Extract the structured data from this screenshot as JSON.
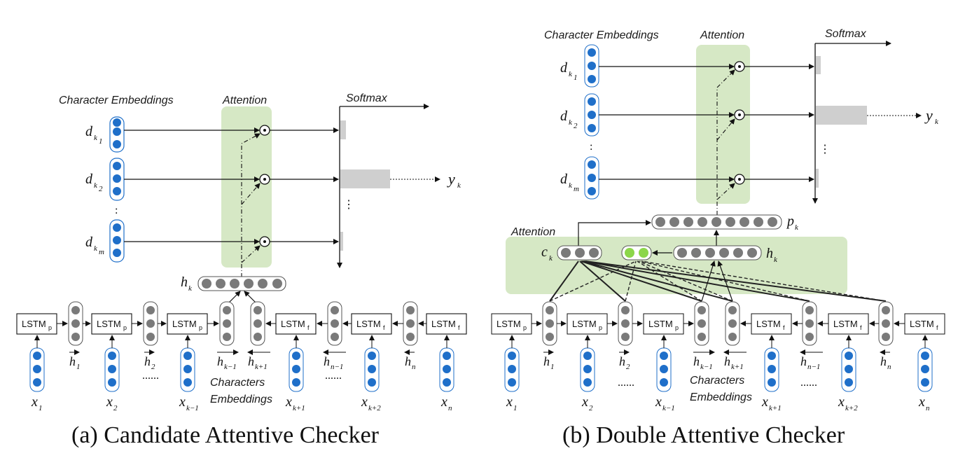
{
  "panel_a": {
    "caption": "(a) Candidate Attentive Checker",
    "char_emb_title": "Character Embeddings",
    "attention_title": "Attention",
    "softmax_title": "Softmax",
    "d_labels": [
      "d",
      "d",
      "d"
    ],
    "d_subs": [
      "k1",
      "k2",
      "km"
    ],
    "y_label": "y",
    "y_sub": "k",
    "h_label": "h",
    "h_sub": "k",
    "lstm_p": "LSTM",
    "lstm_f": "LSTM",
    "sub_p": "p",
    "sub_f": "f",
    "chars_emb": [
      "Characters",
      "Embeddings"
    ],
    "x_labels": [
      "x",
      "x",
      "x",
      "x",
      "x",
      "x"
    ],
    "x_subs": [
      "1",
      "2",
      "k−1",
      "k+1",
      "k+2",
      "n"
    ],
    "h_bottom": [
      "h",
      "h",
      "h",
      "h",
      "h",
      "h"
    ],
    "h_bottom_subs": [
      "1",
      "2",
      "k−1",
      "k+1",
      "n−1",
      "n"
    ],
    "ellipsis": "......",
    "vdots": ":"
  },
  "panel_b": {
    "caption": "(b) Double Attentive Checker",
    "char_emb_title": "Character Embeddings",
    "attention_title": "Attention",
    "softmax_title": "Softmax",
    "attention_low": "Attention",
    "p_label": "p",
    "p_sub": "k",
    "c_label": "c",
    "c_sub": "k",
    "h_label": "h",
    "h_sub": "k",
    "y_label": "y",
    "y_sub": "k",
    "chars_emb": [
      "Characters",
      "Embeddings"
    ],
    "x_labels": [
      "x",
      "x",
      "x",
      "x",
      "x",
      "x"
    ],
    "x_subs": [
      "1",
      "2",
      "k−1",
      "k+1",
      "k+2",
      "n"
    ],
    "h_bottom_subs": [
      "1",
      "2",
      "k−1",
      "k+1",
      "n−1",
      "n"
    ]
  },
  "colors": {
    "attention_fill": "#d6e8c5",
    "blue_node": "#1f6fc9",
    "gray_node": "#7a7a7a",
    "green_node": "#8cd64a",
    "softmax_bar": "#cfcfcf"
  }
}
